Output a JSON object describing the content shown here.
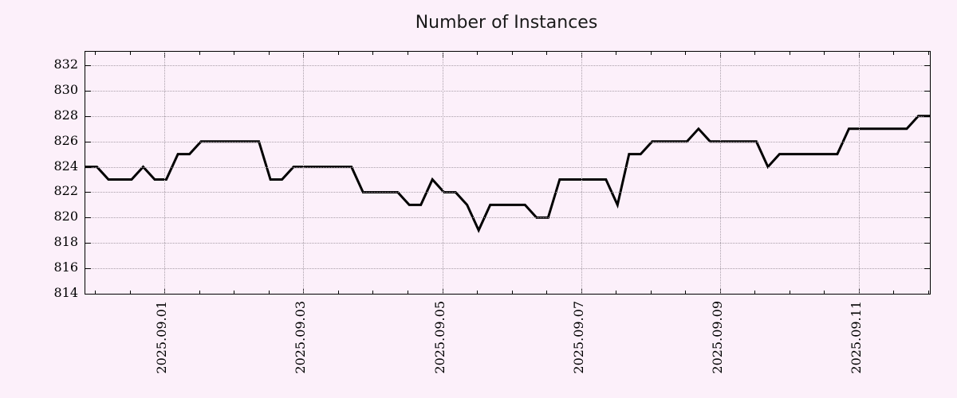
{
  "title": "Number of Instances",
  "chart_data": {
    "type": "line",
    "title": "Number of Instances",
    "series_name": "number-of-instances",
    "x_start": "2025-08-30 20:00",
    "x_step_hours": 4,
    "values": [
      824,
      824,
      823,
      823,
      823,
      824,
      823,
      823,
      825,
      825,
      826,
      826,
      826,
      826,
      826,
      826,
      823,
      823,
      824,
      824,
      824,
      824,
      824,
      824,
      822,
      822,
      822,
      822,
      821,
      821,
      823,
      822,
      822,
      821,
      819,
      821,
      821,
      821,
      821,
      820,
      820,
      823,
      823,
      823,
      823,
      823,
      821,
      825,
      825,
      826,
      826,
      826,
      826,
      827,
      826,
      826,
      826,
      826,
      826,
      824,
      825,
      825,
      825,
      825,
      825,
      825,
      827,
      827,
      827,
      827,
      827,
      827,
      828,
      828
    ],
    "x_major_ticks": [
      {
        "sample": 6.85,
        "label": "2025.09.01"
      },
      {
        "sample": 18.85,
        "label": "2025.09.03"
      },
      {
        "sample": 30.85,
        "label": "2025.09.05"
      },
      {
        "sample": 42.85,
        "label": "2025.09.07"
      },
      {
        "sample": 54.85,
        "label": "2025.09.09"
      },
      {
        "sample": 66.85,
        "label": "2025.09.11"
      }
    ],
    "x_minor_start_sample": 0.85,
    "x_minor_sample_step": 3,
    "y_ticks": [
      814,
      816,
      818,
      820,
      822,
      824,
      826,
      828,
      830,
      832
    ],
    "ylim": [
      814,
      833.07
    ],
    "grid": true,
    "legend": "none",
    "line_color": "#000000",
    "background_color": "#fcf0fa",
    "grid_color": "#a99fa9",
    "frame_color": "#000000"
  }
}
